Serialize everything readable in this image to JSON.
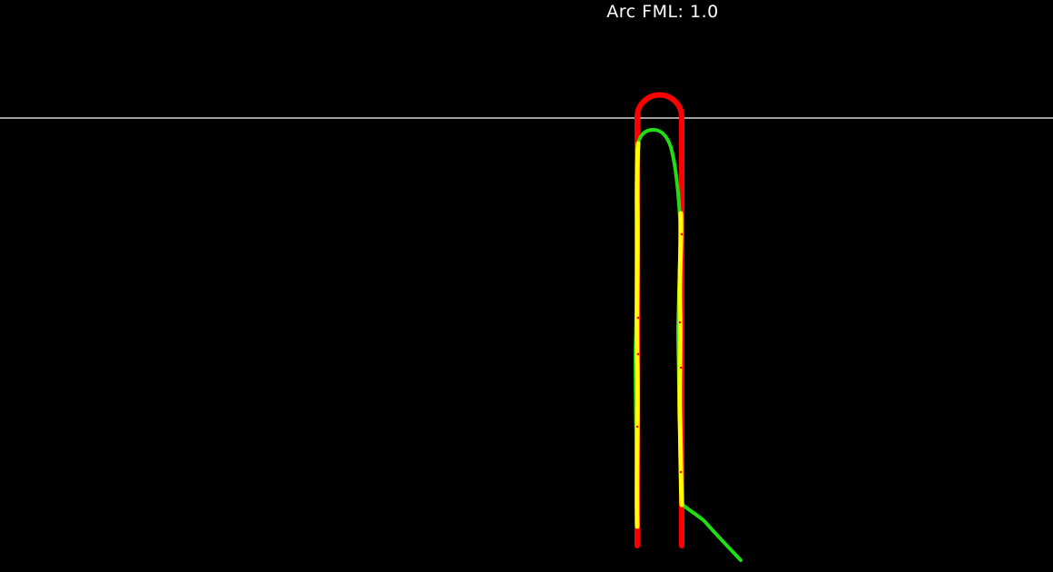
{
  "header": {
    "metric_label": "Arc FML: 1.0"
  },
  "colors": {
    "background": "#000000",
    "reference_line": "#ffffff",
    "ground_truth_arc": "#ff0000",
    "predicted_arc": "#ffff00",
    "traced_path": "#22dd11"
  }
}
